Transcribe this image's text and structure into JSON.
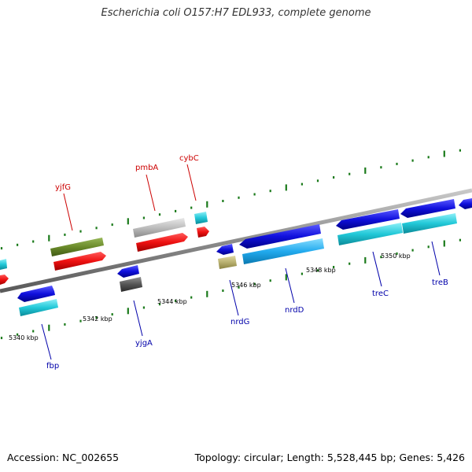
{
  "title": "Escherichia coli O157:H7 EDL933, complete genome",
  "footer": {
    "accession": "Accession: NC_002655",
    "summary": "Topology: circular; Length: 5,528,445 bp; Genes: 5,426"
  },
  "colors": {
    "backbone": "#8c8c8c",
    "tick": "#1a7a1a",
    "red_feature": "#ee1111",
    "blue_feature": "#1010dd",
    "cyan_feature": "#22c8d8",
    "olive_feature": "#6a8a2a",
    "gray_feature": "#bdbdbd",
    "darkgray_feature": "#555555",
    "khaki_feature": "#b8b070",
    "top_label": "#cc0000",
    "bottom_label": "#0000aa"
  },
  "scale_labels": [
    "5340 kbp",
    "5342 kbp",
    "5344 kbp",
    "5346 kbp",
    "5348 kbp",
    "5350 kbp"
  ],
  "genes_top": [
    "yjfG",
    "pmbA",
    "cybC"
  ],
  "genes_bottom": [
    "fbp",
    "yjgA",
    "nrdG",
    "nrdD",
    "treC",
    "treB"
  ]
}
